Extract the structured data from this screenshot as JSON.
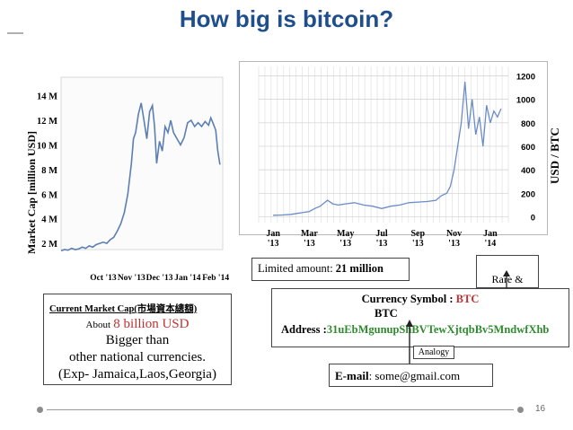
{
  "title": "How big is bitcoin?",
  "colors": {
    "title": "#1f4e8c",
    "line": "#5b7fb5",
    "price_line": "#6a8cc8",
    "accent_red": "#c03030",
    "address_green": "#2e8b2e"
  },
  "chart_data": [
    {
      "type": "line",
      "title": "",
      "ylabel": "Market Cap [million USD]",
      "ytick_labels": [
        "2 M",
        "4 M",
        "6 M",
        "8 M",
        "10 M",
        "12 M",
        "14 M"
      ],
      "yticks": [
        2,
        4,
        6,
        8,
        10,
        12,
        14
      ],
      "xtick_labels": [
        "Oct '13",
        "Nov '13",
        "Dec '13",
        "Jan '14",
        "Feb '14"
      ],
      "xticks": [
        6,
        10,
        14,
        18,
        22
      ],
      "ylim": [
        1.5,
        15.5
      ],
      "xlim": [
        0,
        23
      ],
      "grid": false,
      "series": [
        {
          "x": [
            0,
            0.5,
            1,
            1.5,
            2,
            2.5,
            3,
            3.5,
            4,
            4.5,
            5,
            5.5,
            6,
            6.5,
            7,
            7.5,
            8,
            8.5,
            9,
            9.5,
            10,
            10.3,
            10.6,
            11,
            11.4,
            11.8,
            12.2,
            12.6,
            13,
            13.3,
            13.6,
            14,
            14.4,
            14.8,
            15.2,
            15.6,
            16,
            16.5,
            17,
            17.5,
            18,
            18.5,
            19,
            19.5,
            20,
            20.5,
            21,
            21.3,
            21.6,
            22,
            22.3,
            22.6
          ],
          "y": [
            1.4,
            1.5,
            1.45,
            1.6,
            1.5,
            1.55,
            1.7,
            1.6,
            1.8,
            1.7,
            1.9,
            2.0,
            2.1,
            2.0,
            2.3,
            2.5,
            3.0,
            3.6,
            4.5,
            6.0,
            8.5,
            10.5,
            11.0,
            12.5,
            13.4,
            12.0,
            10.5,
            12.7,
            13.2,
            11.5,
            8.5,
            10.3,
            9.5,
            11.5,
            11.0,
            12.0,
            11.0,
            10.5,
            10.0,
            10.6,
            11.8,
            12.0,
            11.5,
            11.8,
            11.5,
            11.9,
            11.6,
            12.2,
            11.8,
            11.2,
            9.5,
            8.4
          ]
        }
      ]
    },
    {
      "type": "line",
      "title": "",
      "ylabel": "USD / BTC",
      "ytick_labels": [
        "0",
        "200",
        "400",
        "600",
        "800",
        "1000",
        "1200"
      ],
      "yticks": [
        0,
        200,
        400,
        600,
        800,
        1000,
        1200
      ],
      "xtick_labels": [
        "Jan\n'13",
        "Mar\n'13",
        "May\n'13",
        "Jul\n'13",
        "Sep\n'13",
        "Nov\n'13",
        "Jan\n'14"
      ],
      "xticks": [
        0,
        2,
        4,
        6,
        8,
        10,
        12
      ],
      "ylim": [
        -50,
        1280
      ],
      "xlim": [
        -0.8,
        13
      ],
      "grid": true,
      "series": [
        {
          "x": [
            0,
            0.5,
            1,
            1.3,
            1.6,
            2,
            2.3,
            2.6,
            3,
            3.3,
            3.6,
            4,
            4.5,
            5,
            5.5,
            6,
            6.5,
            7,
            7.5,
            8,
            8.5,
            9,
            9.3,
            9.6,
            9.8,
            10,
            10.2,
            10.4,
            10.6,
            10.8,
            11,
            11.2,
            11.4,
            11.6,
            11.8,
            12,
            12.2,
            12.4,
            12.6
          ],
          "y": [
            13,
            15,
            20,
            28,
            35,
            45,
            70,
            90,
            140,
            110,
            100,
            110,
            120,
            100,
            90,
            70,
            90,
            100,
            120,
            125,
            130,
            140,
            180,
            200,
            260,
            400,
            600,
            800,
            1150,
            750,
            1000,
            700,
            850,
            600,
            950,
            800,
            900,
            850,
            920
          ]
        }
      ]
    }
  ],
  "top_right_box": {
    "label": "Rare &\nValuable"
  },
  "limited_box": {
    "label": "Limited amount: ",
    "value": "21 million"
  },
  "currency_box": {
    "symbol_label": "Currency Symbol :",
    "symbol_value": "BTC",
    "symbol_value_2": "BTC",
    "address_label": "Address :",
    "address_value": "31uEbMgunupShBVTewXjtqbBv5MndwfXhb"
  },
  "analogy_label": "Analogy",
  "email_box": {
    "label": "E-mail",
    "value": ": some@gmail.com"
  },
  "market_cap_box": {
    "heading": "Current Market Cap(市場資本總額)",
    "about_label": "About",
    "about_value": "8 billion USD",
    "line_1": "Bigger than",
    "line_2": "other national currencies.",
    "line_3": "(Exp- Jamaica,Laos,Georgia)"
  },
  "page_number": "16"
}
